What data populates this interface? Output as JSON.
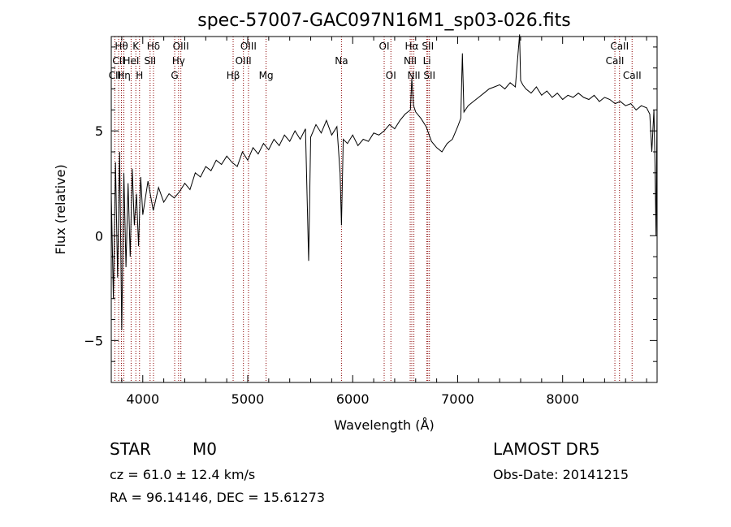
{
  "chart_data": {
    "type": "line",
    "title": "spec-57007-GAC097N16M1_sp03-026.fits",
    "xlabel": "Wavelength (Å)",
    "ylabel": "Flux (relative)",
    "xlim": [
      3700,
      8900
    ],
    "ylim": [
      -7.0,
      9.5
    ],
    "xticks": [
      4000,
      5000,
      6000,
      7000,
      8000
    ],
    "yticks": [
      -5,
      0,
      5
    ],
    "grid": false,
    "line_color": "#000000",
    "marker_color": "#8b0000",
    "x": [
      3700,
      3720,
      3740,
      3760,
      3780,
      3800,
      3820,
      3840,
      3860,
      3880,
      3900,
      3920,
      3940,
      3960,
      3980,
      4000,
      4050,
      4100,
      4150,
      4200,
      4250,
      4300,
      4350,
      4400,
      4450,
      4500,
      4550,
      4600,
      4650,
      4700,
      4750,
      4800,
      4850,
      4900,
      4950,
      5000,
      5050,
      5100,
      5150,
      5200,
      5250,
      5300,
      5350,
      5400,
      5450,
      5500,
      5550,
      5580,
      5600,
      5650,
      5700,
      5750,
      5800,
      5850,
      5880,
      5893,
      5910,
      5950,
      6000,
      6050,
      6100,
      6150,
      6200,
      6250,
      6300,
      6350,
      6400,
      6450,
      6500,
      6550,
      6563,
      6580,
      6600,
      6650,
      6700,
      6750,
      6800,
      6850,
      6900,
      6950,
      7000,
      7030,
      7045,
      7060,
      7100,
      7150,
      7200,
      7250,
      7300,
      7350,
      7400,
      7450,
      7500,
      7550,
      7590,
      7600,
      7620,
      7650,
      7700,
      7750,
      7800,
      7850,
      7900,
      7950,
      8000,
      8050,
      8100,
      8150,
      8200,
      8250,
      8300,
      8350,
      8400,
      8450,
      8500,
      8550,
      8600,
      8650,
      8700,
      8750,
      8800,
      8830,
      8850,
      8870,
      8880,
      8890,
      8900
    ],
    "y": [
      2.0,
      -3.0,
      3.5,
      -2.0,
      4.0,
      -4.5,
      3.0,
      -1.5,
      2.5,
      -1.0,
      3.2,
      0.5,
      2.0,
      -0.5,
      2.8,
      1.0,
      2.6,
      1.2,
      2.3,
      1.6,
      2.0,
      1.8,
      2.1,
      2.5,
      2.2,
      3.0,
      2.8,
      3.3,
      3.1,
      3.6,
      3.4,
      3.8,
      3.5,
      3.3,
      4.0,
      3.6,
      4.2,
      3.9,
      4.4,
      4.1,
      4.6,
      4.3,
      4.8,
      4.5,
      5.0,
      4.6,
      5.1,
      -1.2,
      4.7,
      5.3,
      4.9,
      5.5,
      4.8,
      5.2,
      3.0,
      0.5,
      4.6,
      4.4,
      4.8,
      4.3,
      4.6,
      4.5,
      4.9,
      4.8,
      5.0,
      5.3,
      5.1,
      5.5,
      5.8,
      6.0,
      7.5,
      6.2,
      5.9,
      5.6,
      5.2,
      4.5,
      4.2,
      4.0,
      4.4,
      4.6,
      5.2,
      5.6,
      8.7,
      5.9,
      6.2,
      6.4,
      6.6,
      6.8,
      7.0,
      7.1,
      7.2,
      7.0,
      7.3,
      7.1,
      9.6,
      7.4,
      7.2,
      7.0,
      6.8,
      7.1,
      6.7,
      6.9,
      6.6,
      6.8,
      6.5,
      6.7,
      6.6,
      6.8,
      6.6,
      6.5,
      6.7,
      6.4,
      6.6,
      6.5,
      6.3,
      6.4,
      6.2,
      6.3,
      6.0,
      6.2,
      6.1,
      5.8,
      4.0,
      6.0,
      3.5,
      0.0,
      6.2
    ]
  },
  "line_markers": [
    {
      "wave": 3734,
      "row": 3,
      "label": "CII"
    },
    {
      "wave": 3770,
      "row": 2,
      "label": "CII"
    },
    {
      "wave": 3797,
      "row": 1,
      "label": "Hθ"
    },
    {
      "wave": 3820,
      "row": 3,
      "label": "Hη"
    },
    {
      "wave": 3889,
      "row": 2,
      "label": "HeI"
    },
    {
      "wave": 3934,
      "row": 1,
      "label": "K"
    },
    {
      "wave": 3969,
      "row": 3,
      "label": "H"
    },
    {
      "wave": 4070,
      "row": 2,
      "label": "SII"
    },
    {
      "wave": 4102,
      "row": 1,
      "label": "Hδ"
    },
    {
      "wave": 4304,
      "row": 3,
      "label": "G"
    },
    {
      "wave": 4341,
      "row": 2,
      "label": "Hγ"
    },
    {
      "wave": 4363,
      "row": 1,
      "label": "OIII"
    },
    {
      "wave": 4861,
      "row": 3,
      "label": "Hβ"
    },
    {
      "wave": 4959,
      "row": 2,
      "label": "OIII"
    },
    {
      "wave": 5007,
      "row": 1,
      "label": "OIII"
    },
    {
      "wave": 5175,
      "row": 3,
      "label": "Mg"
    },
    {
      "wave": 5893,
      "row": 2,
      "label": "Na"
    },
    {
      "wave": 6300,
      "row": 1,
      "label": "OI"
    },
    {
      "wave": 6364,
      "row": 3,
      "label": "OI"
    },
    {
      "wave": 6548,
      "row": 2,
      "label": "NII"
    },
    {
      "wave": 6563,
      "row": 1,
      "label": "Hα"
    },
    {
      "wave": 6583,
      "row": 3,
      "label": "NII"
    },
    {
      "wave": 6707,
      "row": 2,
      "label": "Li"
    },
    {
      "wave": 6716,
      "row": 1,
      "label": "SII"
    },
    {
      "wave": 6731,
      "row": 3,
      "label": "SII"
    },
    {
      "wave": 8498,
      "row": 2,
      "label": "CaII"
    },
    {
      "wave": 8542,
      "row": 1,
      "label": "CaII"
    },
    {
      "wave": 8662,
      "row": 3,
      "label": "CaII"
    }
  ],
  "info": {
    "class_label": "STAR",
    "subclass_label": "M0",
    "survey_label": "LAMOST DR5",
    "cz_line": "cz = 61.0 ± 12.4 km/s",
    "obs_date_line": "Obs-Date: 20141215",
    "coords_line": "RA =  96.14146, DEC =  15.61273"
  }
}
